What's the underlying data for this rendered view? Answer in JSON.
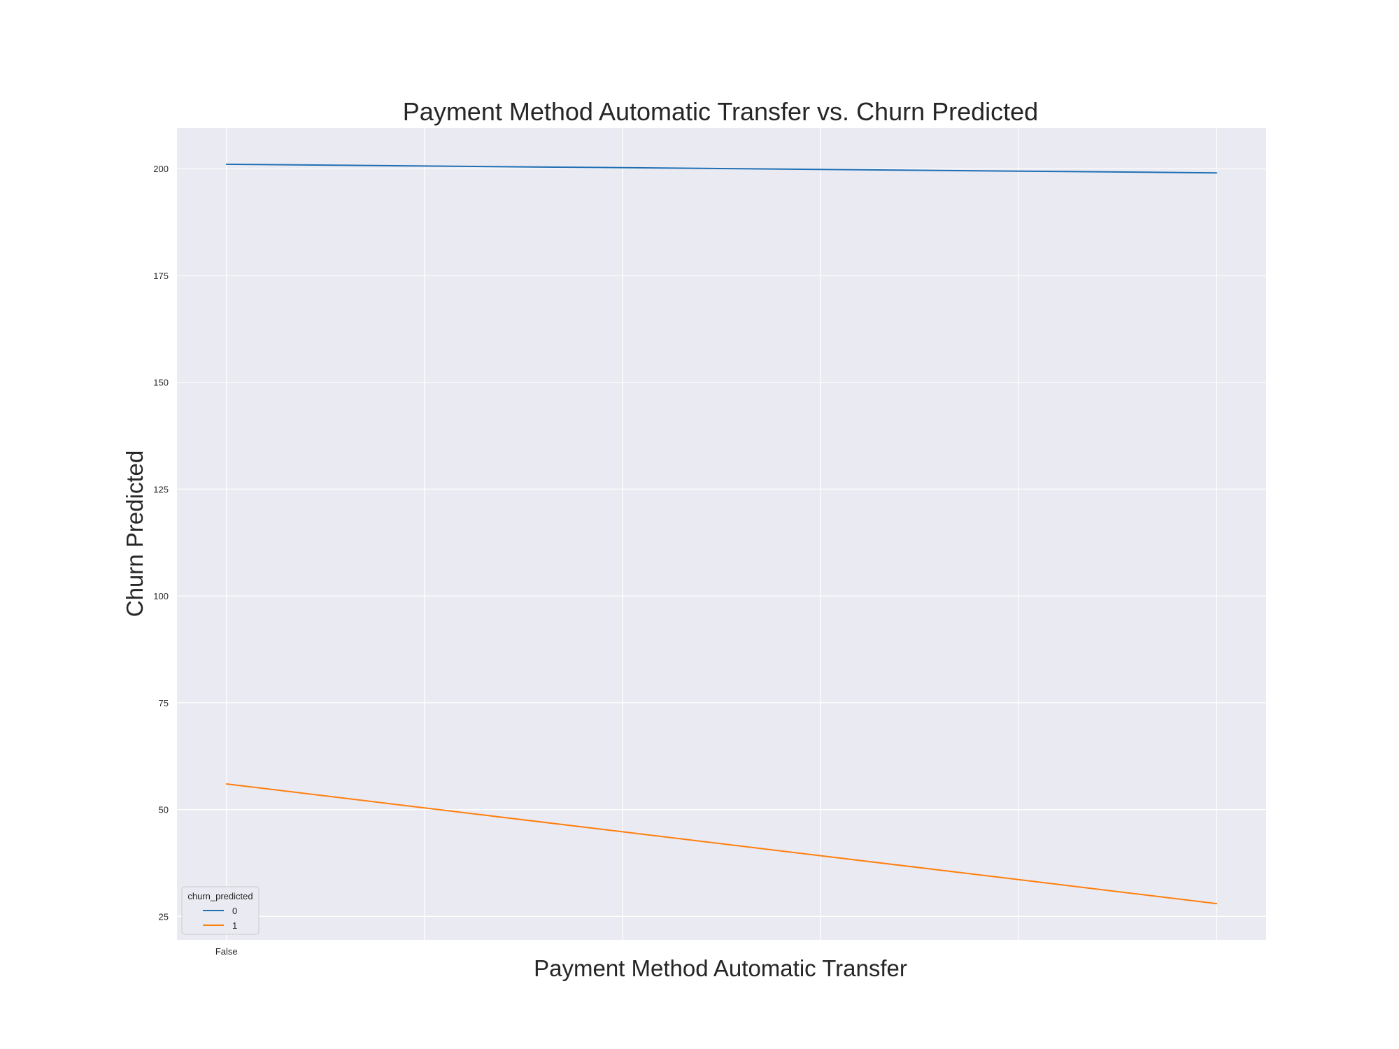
{
  "chart_data": {
    "type": "line",
    "title": "Payment Method Automatic Transfer vs. Churn Predicted",
    "xlabel": "Payment Method Automatic Transfer",
    "ylabel": "Churn Predicted",
    "x_tick_labels": [
      "False",
      "",
      "",
      "",
      "",
      ""
    ],
    "x": [
      0,
      0.2,
      0.4,
      0.6,
      0.8,
      1.0
    ],
    "xlim": [
      -0.05,
      1.05
    ],
    "ylim": [
      19.5,
      209.5
    ],
    "yticks": [
      25,
      50,
      75,
      100,
      125,
      150,
      175,
      200
    ],
    "grid": true,
    "background": "#eaeaf2",
    "legend": {
      "title": "churn_predicted",
      "placement": "lower-left"
    },
    "series": [
      {
        "name": "0",
        "color": "#1f6fb4",
        "values": [
          201,
          200.6,
          200.2,
          199.8,
          199.4,
          199
        ]
      },
      {
        "name": "1",
        "color": "#ff7f0e",
        "values": [
          56,
          50.4,
          44.8,
          39.2,
          33.6,
          28
        ]
      }
    ]
  }
}
